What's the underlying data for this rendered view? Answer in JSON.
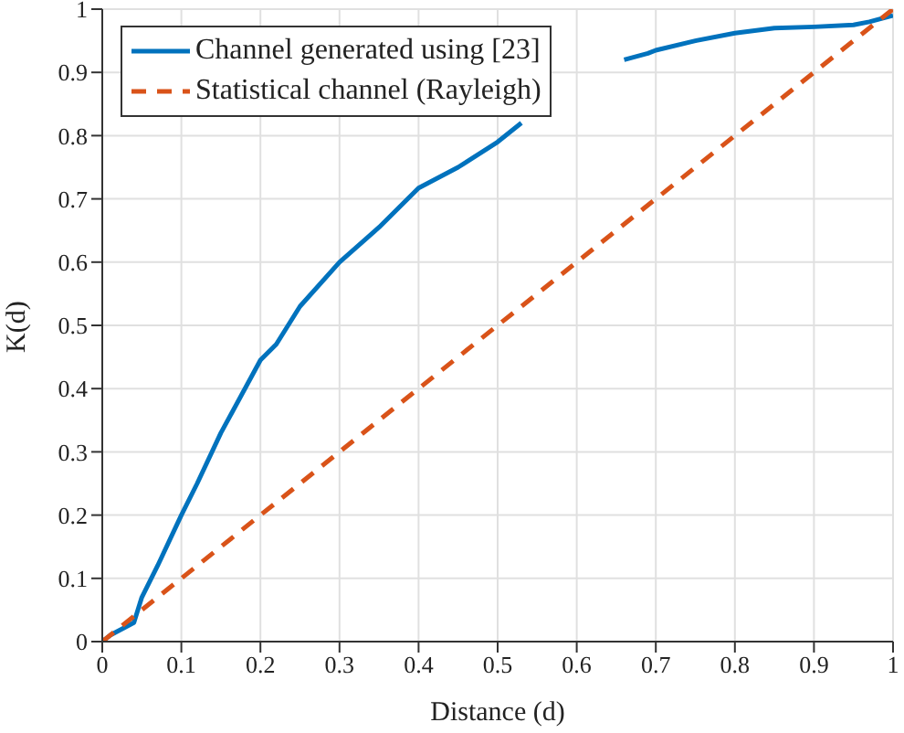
{
  "chart_data": {
    "type": "line",
    "xlabel": "Distance (d)",
    "ylabel": "K(d)",
    "xlim": [
      0,
      1
    ],
    "ylim": [
      0,
      1
    ],
    "xticks": [
      0,
      0.1,
      0.2,
      0.3,
      0.4,
      0.5,
      0.6,
      0.7,
      0.8,
      0.9,
      1
    ],
    "yticks": [
      0,
      0.1,
      0.2,
      0.3,
      0.4,
      0.5,
      0.6,
      0.7,
      0.8,
      0.9,
      1
    ],
    "grid": true,
    "legend": "top left",
    "series": [
      {
        "name": "Channel generated using [23]",
        "color": "#0072bd",
        "line_style": "solid",
        "x": [
          0,
          0.01,
          0.04,
          0.05,
          0.07,
          0.1,
          0.12,
          0.15,
          0.2,
          0.22,
          0.25,
          0.3,
          0.35,
          0.4,
          0.45,
          0.5,
          0.53,
          0.55,
          0.6,
          0.66,
          0.69,
          0.7,
          0.75,
          0.8,
          0.85,
          0.9,
          0.95,
          0.97,
          1
        ],
        "values": [
          0,
          0.01,
          0.03,
          0.07,
          0.12,
          0.2,
          0.25,
          0.33,
          0.445,
          0.47,
          0.53,
          0.6,
          0.655,
          0.717,
          0.75,
          0.79,
          0.82,
          null,
          null,
          0.92,
          0.93,
          0.935,
          0.95,
          0.962,
          0.97,
          0.972,
          0.975,
          0.98,
          0.99
        ]
      },
      {
        "name": "Statistical channel (Rayleigh)",
        "color": "#d95319",
        "line_style": "dashed",
        "x": [
          0,
          1
        ],
        "values": [
          0,
          1
        ]
      }
    ]
  }
}
